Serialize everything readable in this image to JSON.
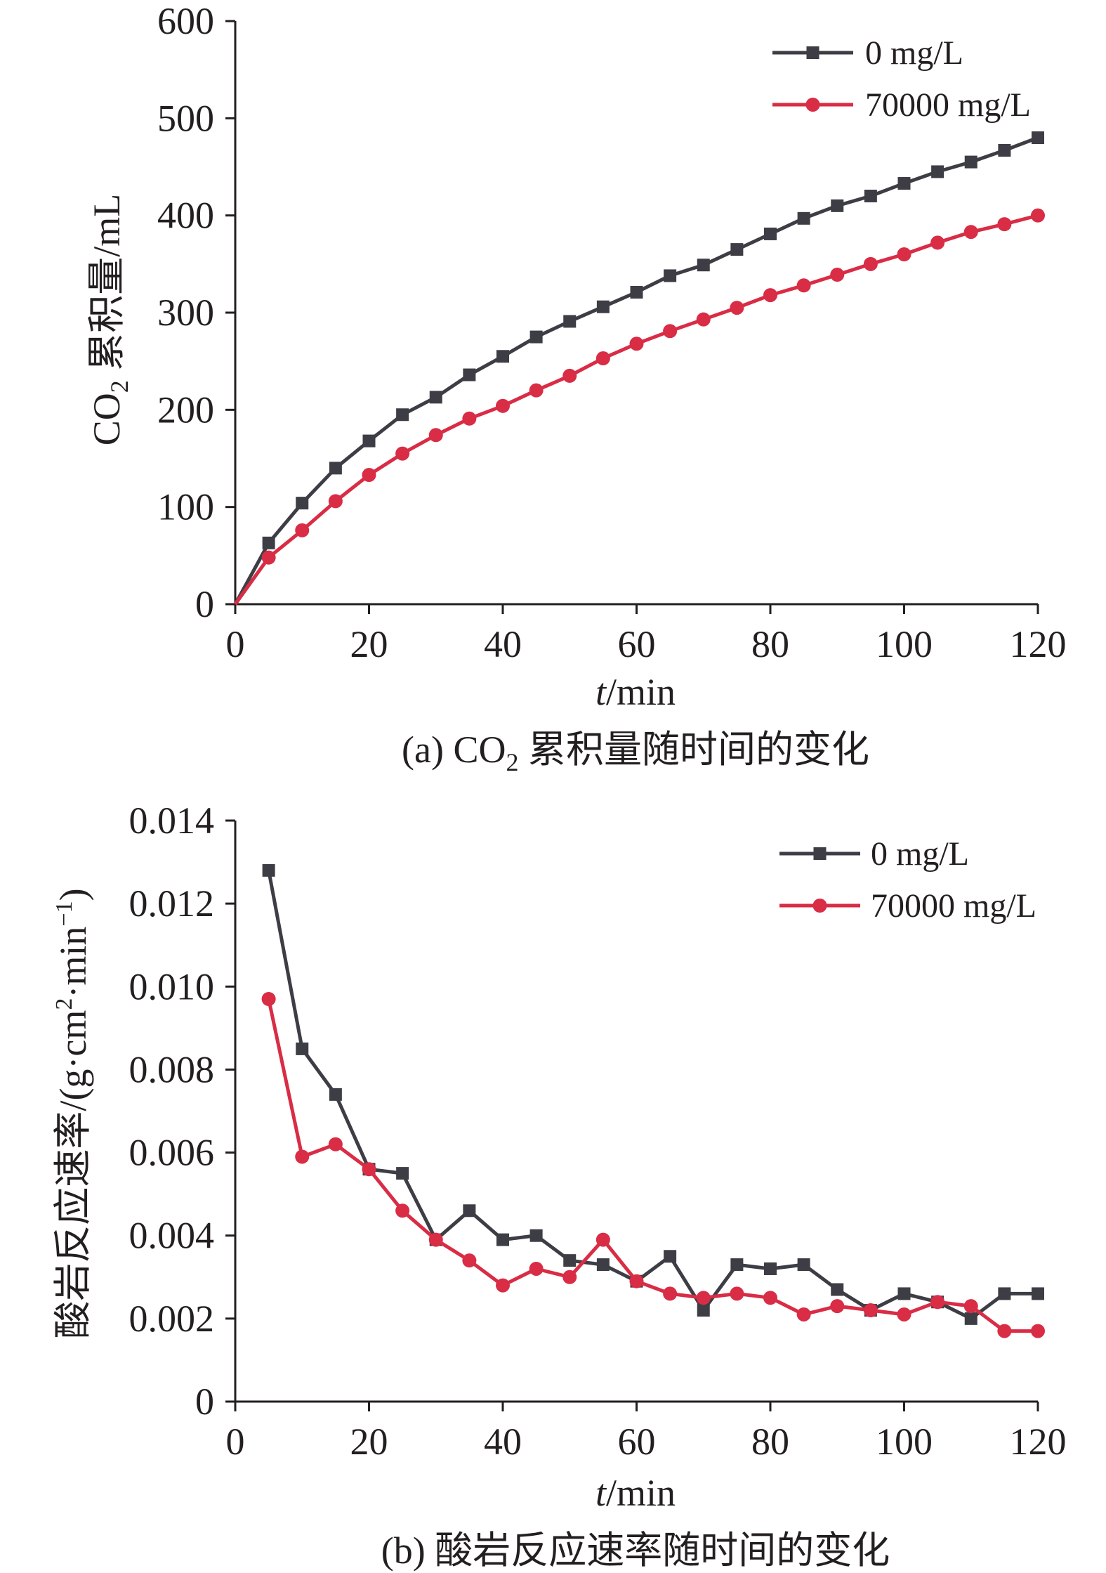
{
  "chart_data": [
    {
      "type": "line",
      "caption": "(a) CO₂ 累积量随时间的变化",
      "xlabel": "t/min",
      "ylabel": "CO₂ 累积量/mL",
      "xlim": [
        0,
        120
      ],
      "ylim": [
        0,
        600
      ],
      "xticks": [
        "0",
        "20",
        "40",
        "60",
        "80",
        "100",
        "120"
      ],
      "yticks": [
        "0",
        "100",
        "200",
        "300",
        "400",
        "500",
        "600"
      ],
      "grid": false,
      "legend_position": "top-right",
      "x": [
        0,
        5,
        10,
        15,
        20,
        25,
        30,
        35,
        40,
        45,
        50,
        55,
        60,
        65,
        70,
        75,
        80,
        85,
        90,
        95,
        100,
        105,
        110,
        115,
        120
      ],
      "series": [
        {
          "name": "0 mg/L",
          "color": "#3d3e45",
          "marker": "square",
          "values": [
            0,
            63,
            104,
            140,
            168,
            195,
            213,
            236,
            255,
            275,
            291,
            306,
            321,
            338,
            349,
            365,
            381,
            397,
            410,
            420,
            433,
            445,
            455,
            467,
            480
          ]
        },
        {
          "name": "70000 mg/L",
          "color": "#d92c45",
          "marker": "circle",
          "values": [
            0,
            48,
            76,
            106,
            133,
            155,
            174,
            191,
            204,
            220,
            235,
            253,
            268,
            281,
            293,
            305,
            318,
            328,
            339,
            350,
            360,
            372,
            383,
            391,
            400
          ]
        }
      ]
    },
    {
      "type": "line",
      "caption": "(b) 酸岩反应速率随时间的变化",
      "xlabel": "t/min",
      "ylabel": "酸岩反应速率/(g·cm²·min⁻¹)",
      "xlim": [
        0,
        120
      ],
      "ylim": [
        0,
        0.014
      ],
      "xticks": [
        "0",
        "20",
        "40",
        "60",
        "80",
        "100",
        "120"
      ],
      "yticks": [
        "0",
        "0.002",
        "0.004",
        "0.006",
        "0.008",
        "0.010",
        "0.012",
        "0.014"
      ],
      "grid": false,
      "legend_position": "top-right",
      "x": [
        5,
        10,
        15,
        20,
        25,
        30,
        35,
        40,
        45,
        50,
        55,
        60,
        65,
        70,
        75,
        80,
        85,
        90,
        95,
        100,
        105,
        110,
        115,
        120
      ],
      "series": [
        {
          "name": "0 mg/L",
          "color": "#3d3e45",
          "marker": "square",
          "values": [
            0.0128,
            0.0085,
            0.0074,
            0.0056,
            0.0055,
            0.0039,
            0.0046,
            0.0039,
            0.004,
            0.0034,
            0.0033,
            0.0029,
            0.0035,
            0.0022,
            0.0033,
            0.0032,
            0.0033,
            0.0027,
            0.0022,
            0.0026,
            0.0024,
            0.002,
            0.0026,
            0.0026
          ]
        },
        {
          "name": "70000 mg/L",
          "color": "#d92c45",
          "marker": "circle",
          "values": [
            0.0097,
            0.0059,
            0.0062,
            0.0056,
            0.0046,
            0.0039,
            0.0034,
            0.0028,
            0.0032,
            0.003,
            0.0039,
            0.0029,
            0.0026,
            0.0025,
            0.0026,
            0.0025,
            0.0021,
            0.0023,
            0.0022,
            0.0021,
            0.0024,
            0.0023,
            0.0017,
            0.0017
          ]
        }
      ]
    }
  ]
}
